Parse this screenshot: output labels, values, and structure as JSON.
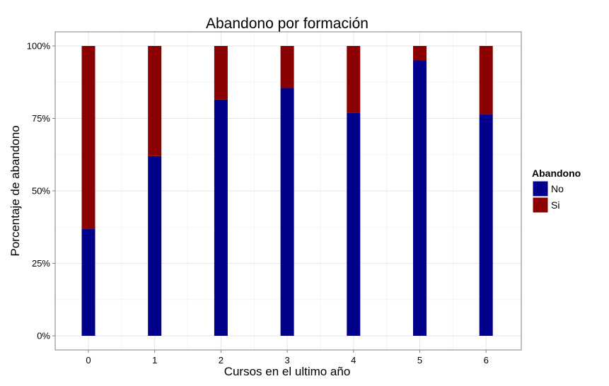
{
  "chart_data": {
    "type": "bar",
    "stacked": true,
    "title": "Abandono por formación",
    "xlabel": "Cursos en el ultimo año",
    "ylabel": "Porcentaje de abandono",
    "categories": [
      "0",
      "1",
      "2",
      "3",
      "4",
      "5",
      "6"
    ],
    "series": [
      {
        "name": "No",
        "color": "#00008b",
        "values": [
          0.37,
          0.62,
          0.815,
          0.855,
          0.77,
          0.95,
          0.765
        ]
      },
      {
        "name": "Si",
        "color": "#8b0000",
        "values": [
          0.63,
          0.38,
          0.185,
          0.145,
          0.23,
          0.05,
          0.235
        ]
      }
    ],
    "ylim": [
      0,
      1
    ],
    "yticks": [
      "0%",
      "25%",
      "50%",
      "75%",
      "100%"
    ],
    "grid": true,
    "legend": {
      "title": "Abandono",
      "position": "right"
    }
  }
}
